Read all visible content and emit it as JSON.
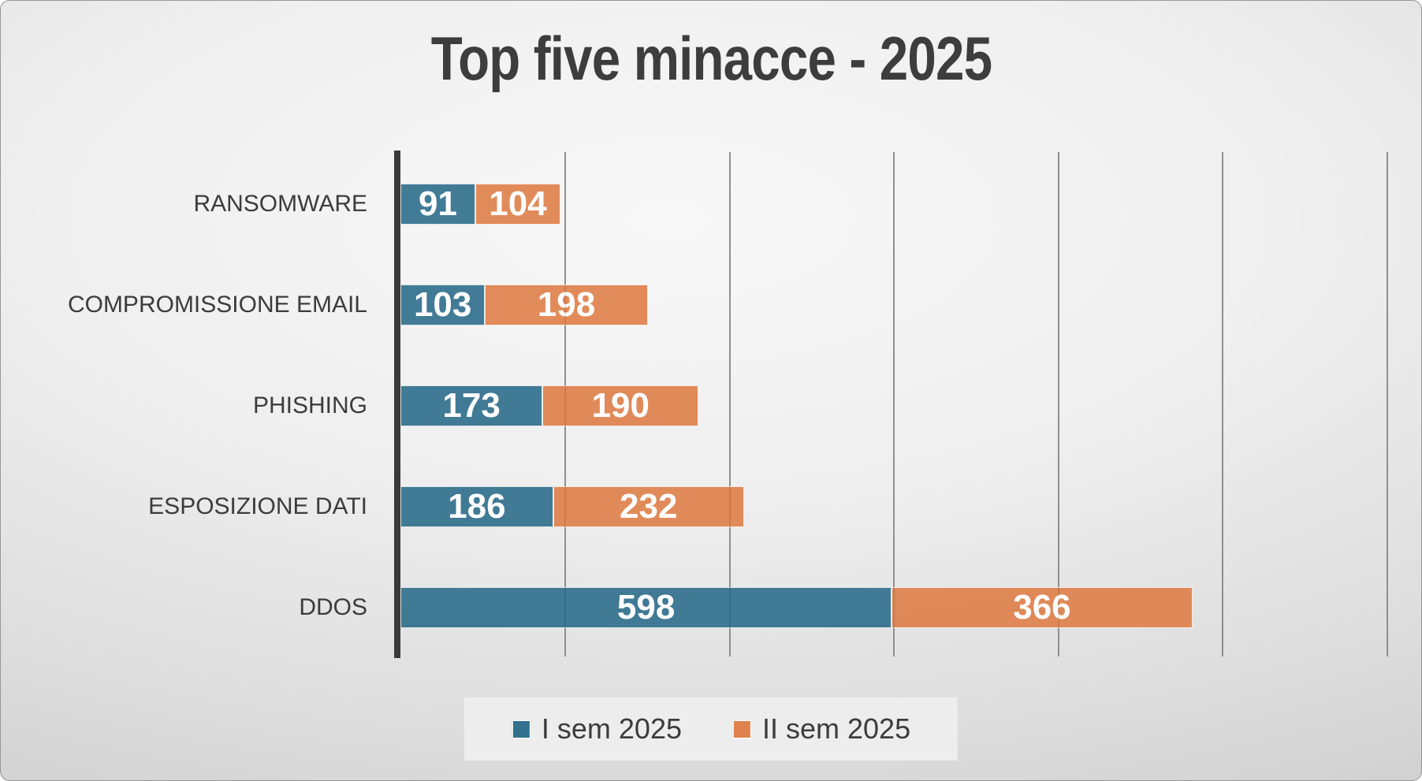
{
  "chart_data": {
    "type": "bar",
    "orientation": "horizontal",
    "stacked": true,
    "title": "Top five minacce - 2025",
    "categories": [
      "RANSOMWARE",
      "COMPROMISSIONE EMAIL",
      "PHISHING",
      "ESPOSIZIONE DATI",
      "DDOS"
    ],
    "series": [
      {
        "name": "I sem 2025",
        "color": "#33718E",
        "values": [
          91,
          103,
          173,
          186,
          598
        ]
      },
      {
        "name": "II sem 2025",
        "color": "#E0824D",
        "values": [
          104,
          198,
          190,
          232,
          366
        ]
      }
    ],
    "totals": [
      195,
      301,
      363,
      418,
      964
    ],
    "xlim": [
      0,
      1233
    ],
    "gridlines": [
      200,
      400,
      600,
      800,
      1000,
      1200
    ],
    "grid": "vertical gridlines only, no value-axis tick labels",
    "legend_position": "bottom-center",
    "data_labels": "inside center, white bold"
  },
  "legend": {
    "items": [
      {
        "label": "I sem 2025",
        "color": "#33718E"
      },
      {
        "label": "II sem 2025",
        "color": "#E0824D"
      }
    ]
  },
  "colors": {
    "series_1": "#33718E",
    "series_2": "#E0824D",
    "title_text": "#3D3D3D",
    "category_label_text": "#3C3C3C",
    "data_label_text": "#FFFFFF",
    "gridline": "#9B9B9B",
    "axis_line": "#3A3A3A",
    "legend_background": "#EDEDED",
    "slide_background_center": "#F6F6F6",
    "slide_background_edge": "#C6C6C6"
  }
}
